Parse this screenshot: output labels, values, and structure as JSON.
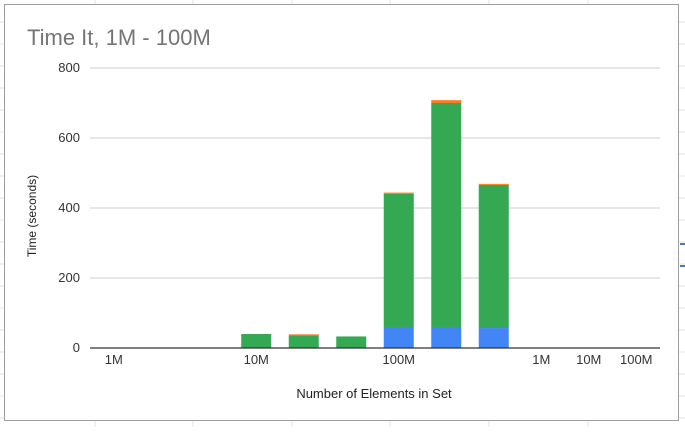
{
  "chart_data": {
    "type": "bar",
    "stacked": true,
    "title": "Time It, 1M - 100M",
    "xlabel": "Number of Elements in Set",
    "ylabel": "Time (seconds)",
    "ylim": [
      0,
      800
    ],
    "yticks": [
      0,
      200,
      400,
      600,
      800
    ],
    "grid": true,
    "legend": "none",
    "categories": [
      "1M",
      "",
      "",
      "10M",
      "",
      "",
      "100M",
      "",
      "",
      "1M",
      "10M",
      "100M"
    ],
    "series": [
      {
        "color": "#4285f4",
        "values": [
          0,
          0,
          0,
          1,
          1,
          1,
          60,
          60,
          57,
          0,
          0,
          0
        ]
      },
      {
        "color": "#34a853",
        "values": [
          0,
          0,
          0,
          39,
          35,
          32,
          381,
          640,
          409,
          0,
          0,
          0
        ]
      },
      {
        "color": "#fa7b17",
        "values": [
          0,
          0,
          0,
          0,
          3,
          0,
          3,
          8,
          3,
          0,
          0,
          0
        ]
      }
    ]
  }
}
